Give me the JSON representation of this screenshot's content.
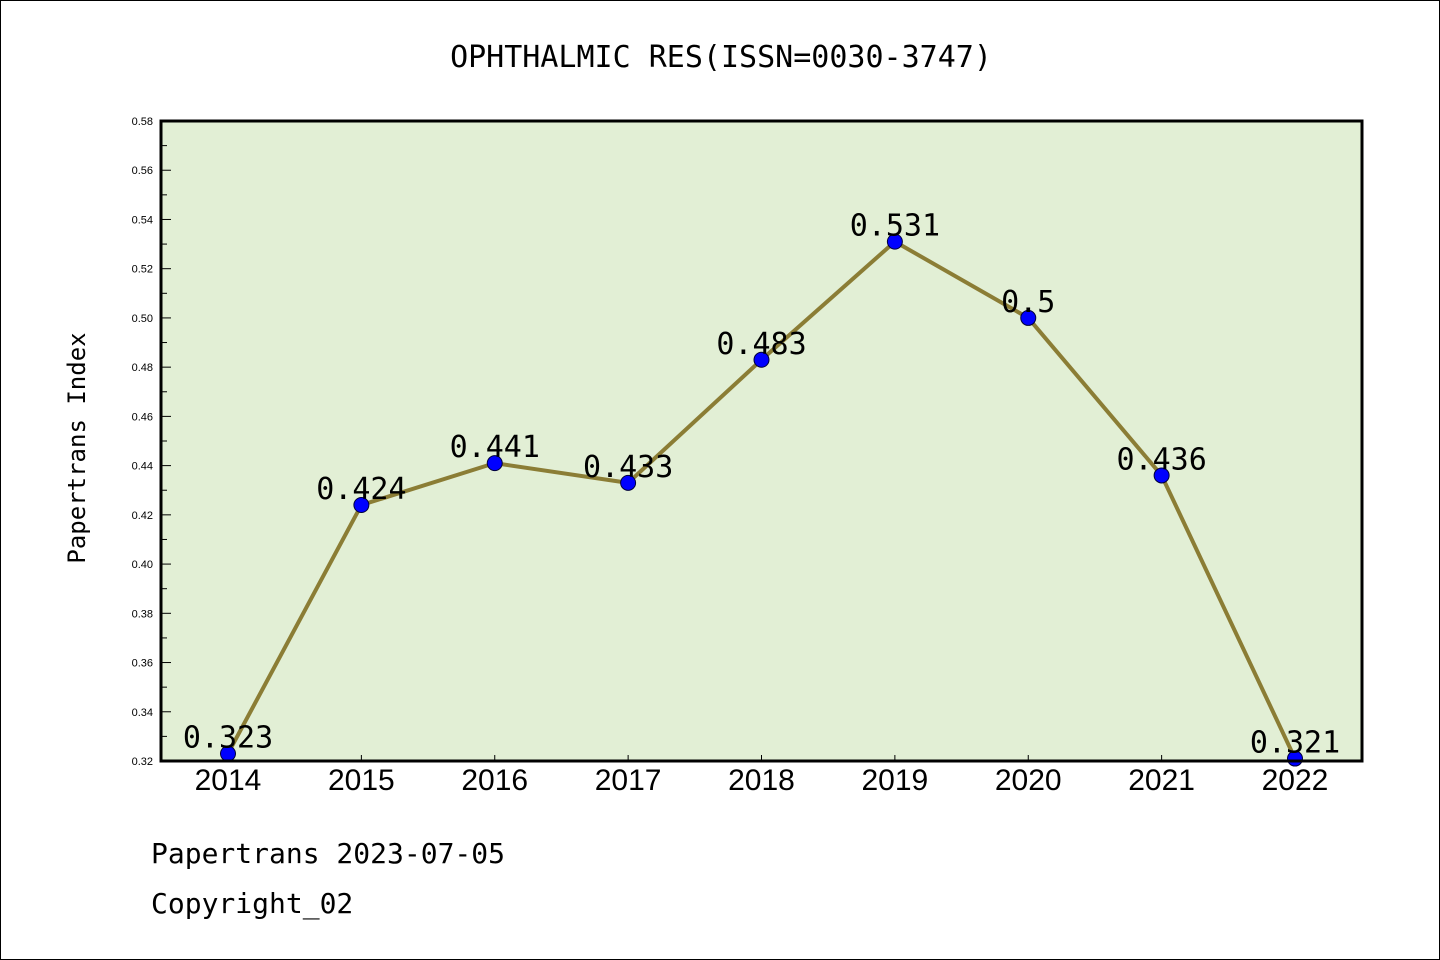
{
  "chart_data": {
    "type": "line",
    "title": "OPHTHALMIC RES(ISSN=0030-3747)",
    "ylabel": "Papertrans Index",
    "xlabel": "",
    "categories": [
      "2014",
      "2015",
      "2016",
      "2017",
      "2018",
      "2019",
      "2020",
      "2021",
      "2022"
    ],
    "values": [
      0.323,
      0.424,
      0.441,
      0.433,
      0.483,
      0.531,
      0.5,
      0.436,
      0.321
    ],
    "data_labels": [
      "0.323",
      "0.424",
      "0.441",
      "0.433",
      "0.483",
      "0.531",
      "0.5",
      "0.436",
      "0.321"
    ],
    "ylim": [
      0.32,
      0.58
    ],
    "yticks": [
      "0.32",
      "0.34",
      "0.36",
      "0.38",
      "0.40",
      "0.42",
      "0.44",
      "0.46",
      "0.48",
      "0.50",
      "0.52",
      "0.54",
      "0.56",
      "0.58"
    ],
    "grid": false,
    "colors": {
      "plot_background": "#e2efd5",
      "line": "#8b7d35",
      "marker": "#0000ff"
    }
  },
  "footer": {
    "line1": "Papertrans 2023-07-05",
    "line2": "Copyright_02"
  }
}
